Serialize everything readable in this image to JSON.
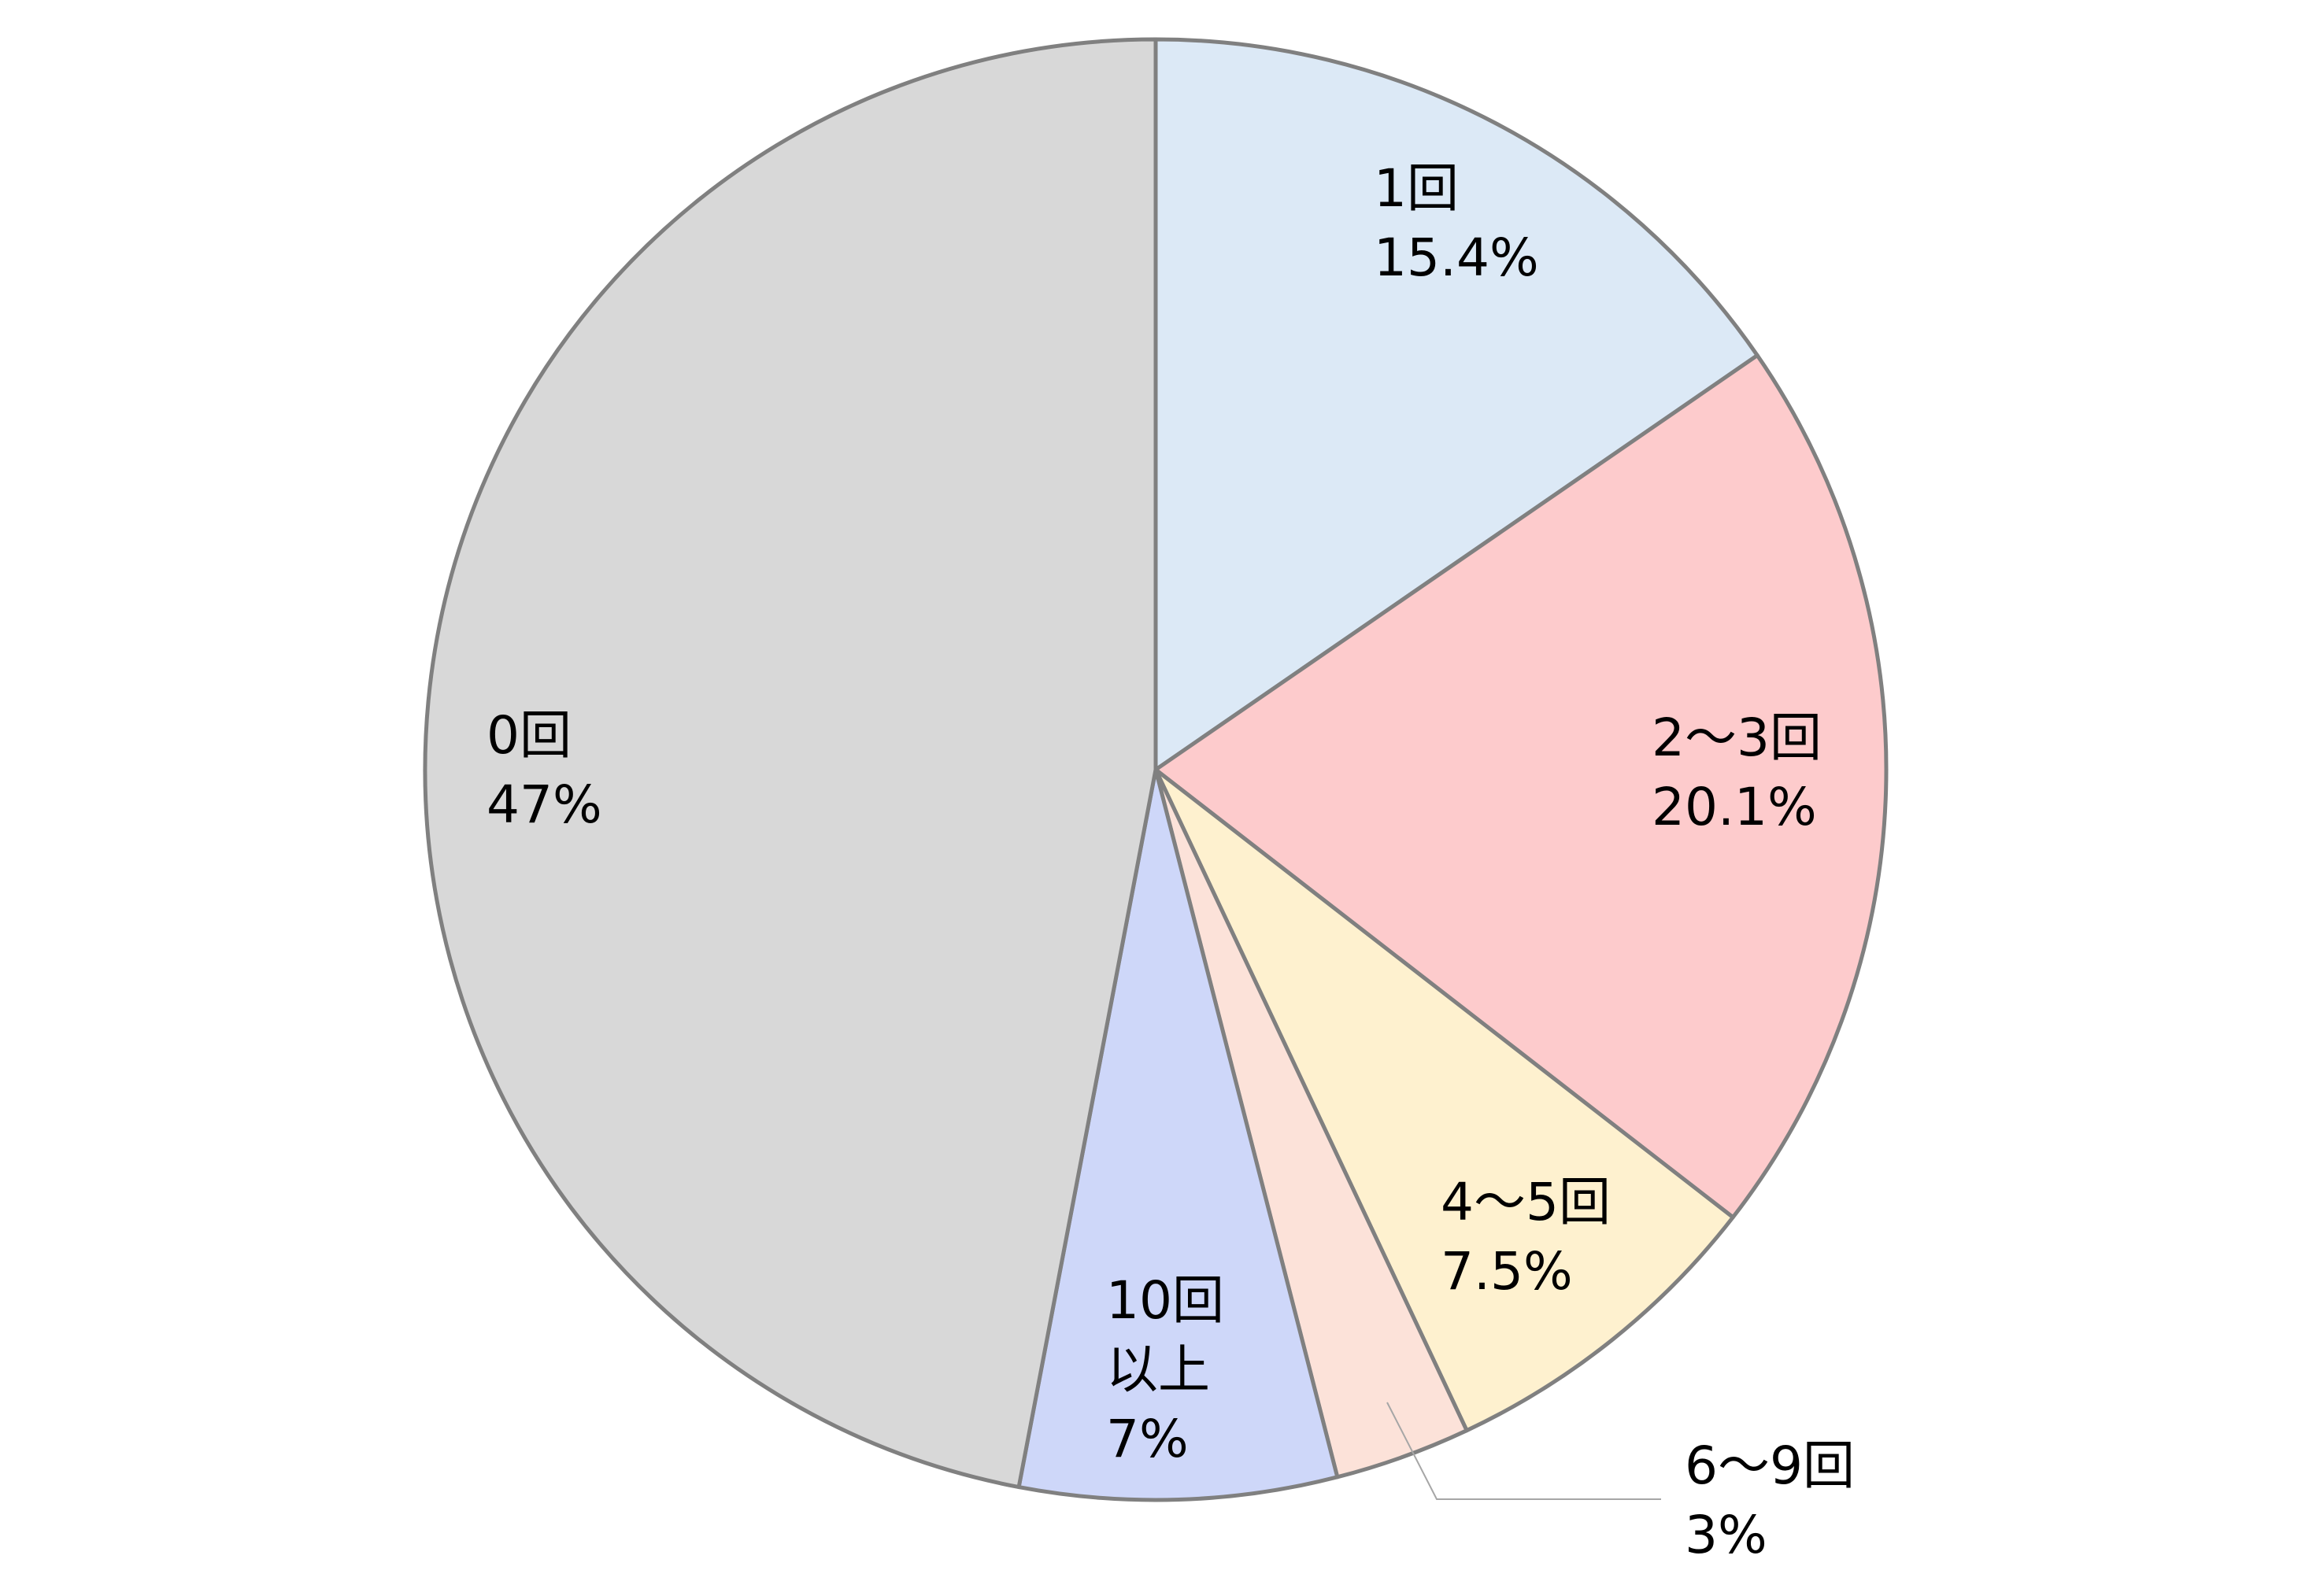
{
  "chart_data": {
    "type": "pie",
    "title": "",
    "start_angle_deg": 0,
    "direction": "clockwise",
    "legend": "none",
    "slices": [
      {
        "category": "1回",
        "label_lines": [
          "1回"
        ],
        "value": 15.4,
        "value_label": "15.4%",
        "color": "#DCE9F6"
      },
      {
        "category": "2～3回",
        "label_lines": [
          "2～3回"
        ],
        "value": 20.1,
        "value_label": "20.1%",
        "color": "#FDCBCC"
      },
      {
        "category": "4～5回",
        "label_lines": [
          "4～5回"
        ],
        "value": 7.5,
        "value_label": "7.5%",
        "color": "#FEF1CF"
      },
      {
        "category": "6～9回",
        "label_lines": [
          "6～9回"
        ],
        "value": 3,
        "value_label": "3%",
        "color": "#FCE2D9"
      },
      {
        "category": "10回以上",
        "label_lines": [
          "10回",
          "以上"
        ],
        "value": 7,
        "value_label": "7%",
        "color": "#CED7F9"
      },
      {
        "category": "0回",
        "label_lines": [
          "0回"
        ],
        "value": 47,
        "value_label": "47%",
        "color": "#D8D8D8"
      }
    ]
  }
}
